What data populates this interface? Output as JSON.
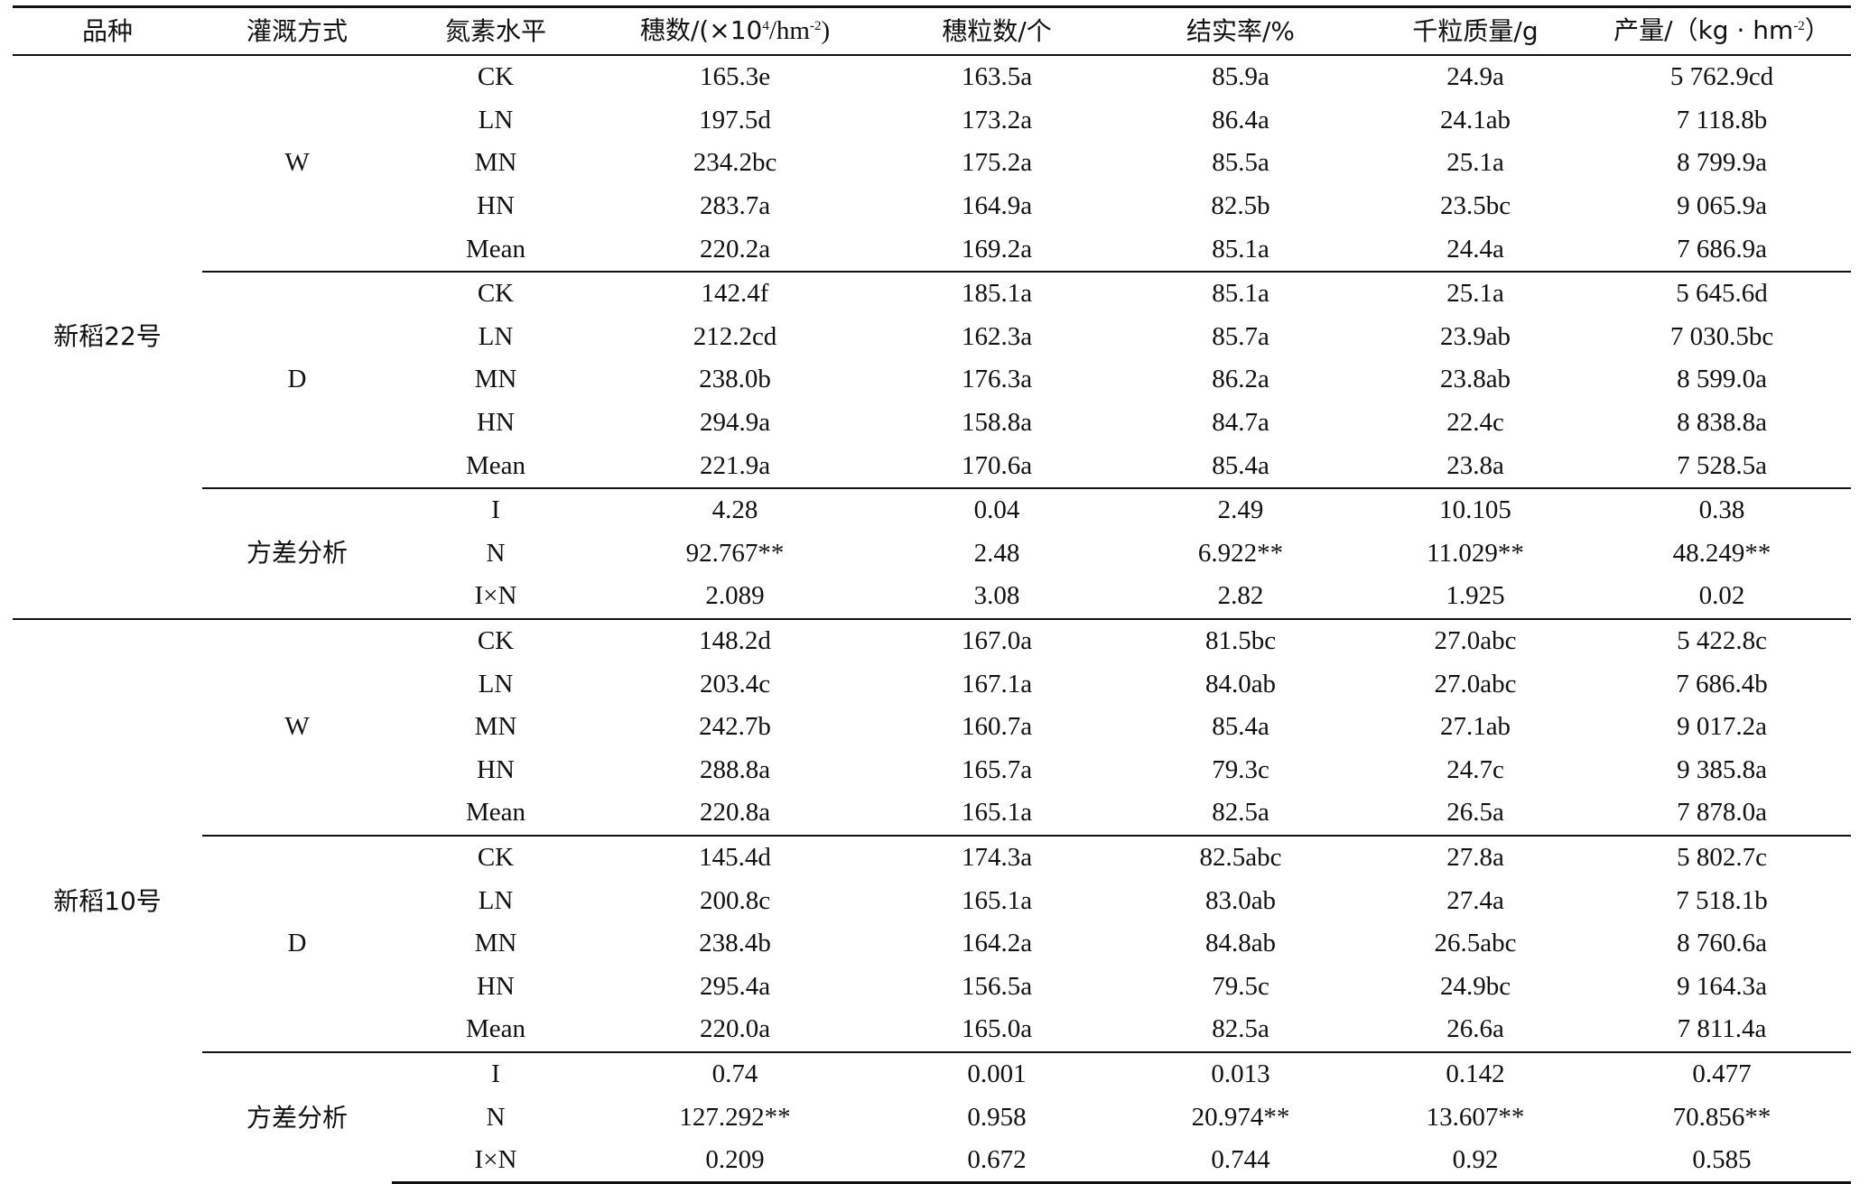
{
  "headers": {
    "variety": "品种",
    "irrigation": "灌溉方式",
    "nitrogen": "氮素水平",
    "panicles_prefix": "穗数/(×10",
    "panicles_sup1": "4",
    "panicles_mid": "/hm",
    "panicles_sup2": "-2",
    "panicles_suffix": ")",
    "grains": "穗粒数/个",
    "seed_setting": "结实率/%",
    "grain_weight": "千粒质量/g",
    "yield_prefix": "产量/（kg · hm",
    "yield_sup": "-2",
    "yield_suffix": "）"
  },
  "varieties": [
    {
      "name": "新稻22号",
      "groups": [
        {
          "label": "W",
          "rows": [
            {
              "n": "CK",
              "panicles": "165.3e",
              "grains": "163.5a",
              "setting": "85.9a",
              "weight": "24.9a",
              "yield": "5 762.9cd"
            },
            {
              "n": "LN",
              "panicles": "197.5d",
              "grains": "173.2a",
              "setting": "86.4a",
              "weight": "24.1ab",
              "yield": "7 118.8b"
            },
            {
              "n": "MN",
              "panicles": "234.2bc",
              "grains": "175.2a",
              "setting": "85.5a",
              "weight": "25.1a",
              "yield": "8 799.9a"
            },
            {
              "n": "HN",
              "panicles": "283.7a",
              "grains": "164.9a",
              "setting": "82.5b",
              "weight": "23.5bc",
              "yield": "9 065.9a"
            },
            {
              "n": "Mean",
              "panicles": "220.2a",
              "grains": "169.2a",
              "setting": "85.1a",
              "weight": "24.4a",
              "yield": "7 686.9a"
            }
          ]
        },
        {
          "label": "D",
          "rows": [
            {
              "n": "CK",
              "panicles": "142.4f",
              "grains": "185.1a",
              "setting": "85.1a",
              "weight": "25.1a",
              "yield": "5 645.6d"
            },
            {
              "n": "LN",
              "panicles": "212.2cd",
              "grains": "162.3a",
              "setting": "85.7a",
              "weight": "23.9ab",
              "yield": "7 030.5bc"
            },
            {
              "n": "MN",
              "panicles": "238.0b",
              "grains": "176.3a",
              "setting": "86.2a",
              "weight": "23.8ab",
              "yield": "8 599.0a"
            },
            {
              "n": "HN",
              "panicles": "294.9a",
              "grains": "158.8a",
              "setting": "84.7a",
              "weight": "22.4c",
              "yield": "8 838.8a"
            },
            {
              "n": "Mean",
              "panicles": "221.9a",
              "grains": "170.6a",
              "setting": "85.4a",
              "weight": "23.8a",
              "yield": "7 528.5a"
            }
          ]
        },
        {
          "label": "方差分析",
          "rows": [
            {
              "n": "I",
              "panicles": "4.28",
              "grains": "0.04",
              "setting": "2.49",
              "weight": "10.105",
              "yield": "0.38"
            },
            {
              "n": "N",
              "panicles": "92.767**",
              "grains": "2.48",
              "setting": "6.922**",
              "weight": "11.029**",
              "yield": "48.249**"
            },
            {
              "n": "I×N",
              "panicles": "2.089",
              "grains": "3.08",
              "setting": "2.82",
              "weight": "1.925",
              "yield": "0.02"
            }
          ]
        }
      ]
    },
    {
      "name": "新稻10号",
      "groups": [
        {
          "label": "W",
          "rows": [
            {
              "n": "CK",
              "panicles": "148.2d",
              "grains": "167.0a",
              "setting": "81.5bc",
              "weight": "27.0abc",
              "yield": "5 422.8c"
            },
            {
              "n": "LN",
              "panicles": "203.4c",
              "grains": "167.1a",
              "setting": "84.0ab",
              "weight": "27.0abc",
              "yield": "7 686.4b"
            },
            {
              "n": "MN",
              "panicles": "242.7b",
              "grains": "160.7a",
              "setting": "85.4a",
              "weight": "27.1ab",
              "yield": "9 017.2a"
            },
            {
              "n": "HN",
              "panicles": "288.8a",
              "grains": "165.7a",
              "setting": "79.3c",
              "weight": "24.7c",
              "yield": "9 385.8a"
            },
            {
              "n": "Mean",
              "panicles": "220.8a",
              "grains": "165.1a",
              "setting": "82.5a",
              "weight": "26.5a",
              "yield": "7 878.0a"
            }
          ]
        },
        {
          "label": "D",
          "rows": [
            {
              "n": "CK",
              "panicles": "145.4d",
              "grains": "174.3a",
              "setting": "82.5abc",
              "weight": "27.8a",
              "yield": "5 802.7c"
            },
            {
              "n": "LN",
              "panicles": "200.8c",
              "grains": "165.1a",
              "setting": "83.0ab",
              "weight": "27.4a",
              "yield": "7 518.1b"
            },
            {
              "n": "MN",
              "panicles": "238.4b",
              "grains": "164.2a",
              "setting": "84.8ab",
              "weight": "26.5abc",
              "yield": "8 760.6a"
            },
            {
              "n": "HN",
              "panicles": "295.4a",
              "grains": "156.5a",
              "setting": "79.5c",
              "weight": "24.9bc",
              "yield": "9 164.3a"
            },
            {
              "n": "Mean",
              "panicles": "220.0a",
              "grains": "165.0a",
              "setting": "82.5a",
              "weight": "26.6a",
              "yield": "7 811.4a"
            }
          ]
        },
        {
          "label": "方差分析",
          "rows": [
            {
              "n": "I",
              "panicles": "0.74",
              "grains": "0.001",
              "setting": "0.013",
              "weight": "0.142",
              "yield": "0.477"
            },
            {
              "n": "N",
              "panicles": "127.292**",
              "grains": "0.958",
              "setting": "20.974**",
              "weight": "13.607**",
              "yield": "70.856**"
            },
            {
              "n": "I×N",
              "panicles": "0.209",
              "grains": "0.672",
              "setting": "0.744",
              "weight": "0.92",
              "yield": "0.585"
            }
          ]
        }
      ]
    }
  ]
}
